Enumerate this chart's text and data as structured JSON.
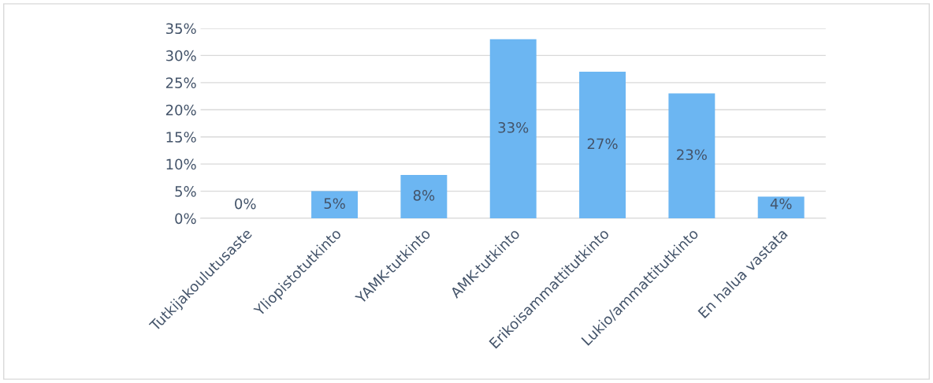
{
  "chart_data": {
    "type": "bar",
    "categories": [
      "Tutkijakoulutusaste",
      "Yliopistotutkinto",
      "YAMK-tutkinto",
      "AMK-tutkinto",
      "Erikoisammattitutkinto",
      "Lukio/ammattitutkinto",
      "En halua vastata"
    ],
    "values": [
      0,
      5,
      8,
      33,
      27,
      23,
      4
    ],
    "color": "#6cb6f2",
    "value_labels": [
      "0%",
      "5%",
      "8%",
      "33%",
      "27%",
      "23%",
      "4%"
    ],
    "ylim": [
      0,
      35
    ],
    "yticks": [
      {
        "value": 0,
        "label": "0%"
      },
      {
        "value": 5,
        "label": "5%"
      },
      {
        "value": 10,
        "label": "10%"
      },
      {
        "value": 15,
        "label": "15%"
      },
      {
        "value": 20,
        "label": "20%"
      },
      {
        "value": 25,
        "label": "25%"
      },
      {
        "value": 30,
        "label": "30%"
      },
      {
        "value": 35,
        "label": "35%"
      }
    ],
    "grid": "y",
    "legend": false
  }
}
